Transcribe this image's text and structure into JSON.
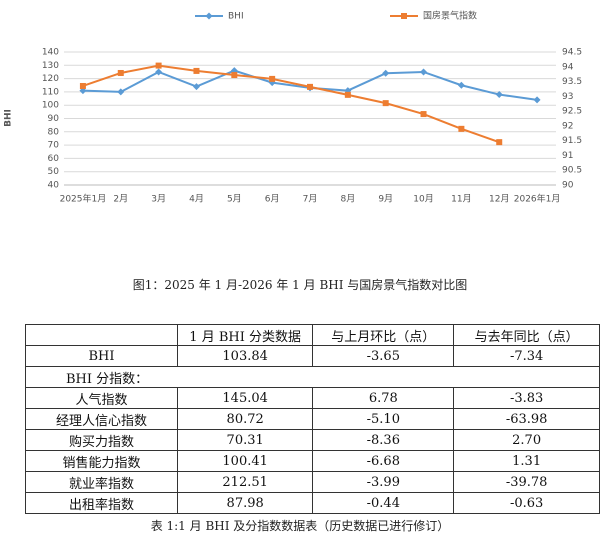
{
  "chart_data": {
    "type": "line",
    "categories": [
      "2025年1月",
      "2月",
      "3月",
      "4月",
      "5月",
      "6月",
      "7月",
      "8月",
      "9月",
      "10月",
      "11月",
      "12月",
      "2026年1月"
    ],
    "series": [
      {
        "name": "BHI",
        "color": "#5b9bd5",
        "values": [
          111,
          110,
          125,
          114,
          126,
          117,
          113,
          111,
          124,
          125,
          115,
          108,
          104
        ]
      },
      {
        "name": "国房景气指数",
        "color": "#ed7d31",
        "axis": "y2",
        "values": [
          93.35,
          93.79,
          94.04,
          93.86,
          93.72,
          93.59,
          93.32,
          93.05,
          92.77,
          92.4,
          91.9,
          91.45,
          null
        ]
      }
    ],
    "ylabel": "BHI",
    "ylim": [
      40,
      140
    ],
    "yticks": [
      40,
      50,
      60,
      70,
      80,
      90,
      100,
      110,
      120,
      130,
      140
    ],
    "y2lim": [
      90,
      94.5
    ],
    "y2ticks": [
      90,
      90.5,
      91,
      91.5,
      92,
      92.5,
      93,
      93.5,
      94,
      94.5
    ],
    "grid": true,
    "legend": "top"
  },
  "figure_caption": "图1：2025 年 1 月-2026 年 1 月 BHI 与国房景气指数对比图",
  "table": {
    "header": [
      "",
      "1 月 BHI 分类数据",
      "与上月环比（点）",
      "与去年同比（点）"
    ],
    "rows": [
      [
        "BHI",
        "103.84",
        "-3.65",
        "-7.34"
      ],
      [
        "BHI 分指数："
      ],
      [
        "人气指数",
        "145.04",
        "6.78",
        "-3.83"
      ],
      [
        "经理人信心指数",
        "80.72",
        "-5.10",
        "-63.98"
      ],
      [
        "购买力指数",
        "70.31",
        "-8.36",
        "2.70"
      ],
      [
        "销售能力指数",
        "100.41",
        "-6.68",
        "1.31"
      ],
      [
        "就业率指数",
        "212.51",
        "-3.99",
        "-39.78"
      ],
      [
        "出租率指数",
        "87.98",
        "-0.44",
        "-0.63"
      ]
    ],
    "caption": "表 1:1 月 BHI 及分指数数据表（历史数据已进行修订）"
  }
}
